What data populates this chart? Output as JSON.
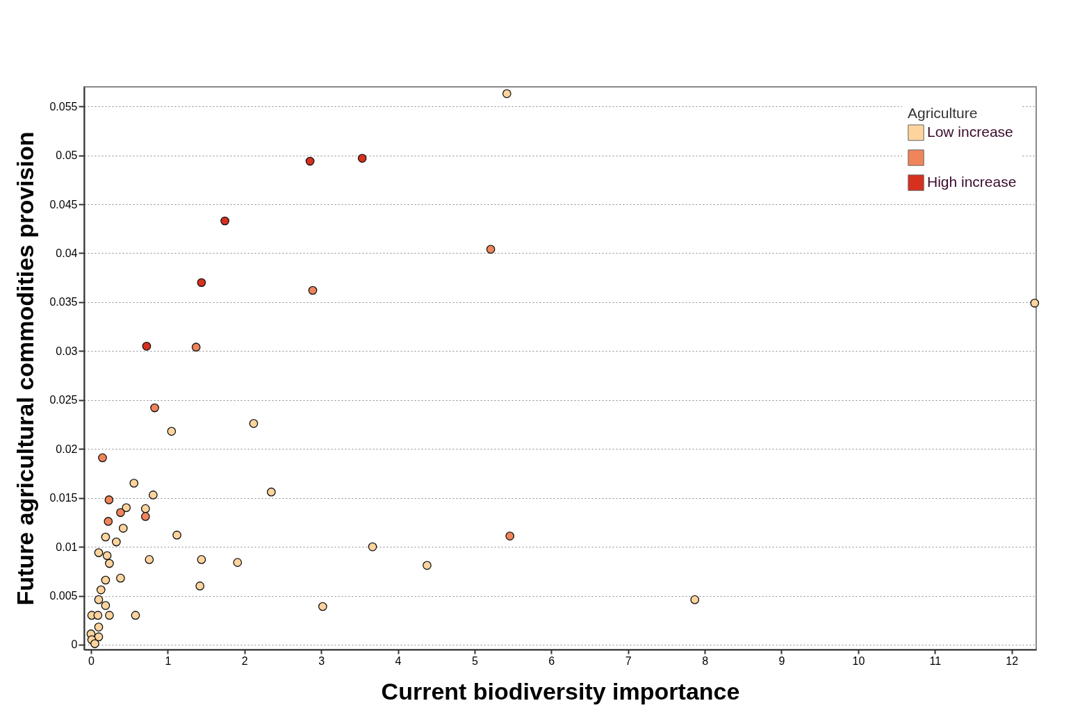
{
  "chart_data": {
    "type": "scatter",
    "xlabel": "Current biodiversity importance",
    "ylabel": "Future agricultural commodities provision",
    "legend_title": "Agriculture",
    "legend": "top right",
    "grid": "y",
    "marker": "circle",
    "xlim": [
      -0.09,
      12.32
    ],
    "ylim": [
      -0.0005,
      0.057
    ],
    "xticks": [
      0,
      1,
      2,
      3,
      4,
      5,
      6,
      7,
      8,
      9,
      10,
      11,
      12
    ],
    "yticks": [
      0,
      0.005,
      0.01,
      0.015,
      0.02,
      0.025,
      0.03,
      0.035,
      0.04,
      0.045,
      0.05,
      0.055
    ],
    "series": [
      {
        "name": "Low increase",
        "color": "#fdd49e",
        "x": [
          5.42,
          12.3,
          1.05,
          2.12,
          2.35,
          0.56,
          0.81,
          1.12,
          3.67,
          4.38,
          1.91,
          1.44,
          0.76,
          1.42,
          3.02,
          7.87,
          0.58,
          0.46,
          0.71,
          0.42,
          0.19,
          0.33,
          0.1,
          0.21,
          0.24,
          0.19,
          0.385,
          0.13,
          0.1,
          0.19,
          0.01,
          0.09,
          0.24,
          0.1,
          0.0,
          0.1,
          0.01,
          0.05
        ],
        "values": [
          0.0563,
          0.0349,
          0.0218,
          0.0226,
          0.0156,
          0.0165,
          0.0153,
          0.0112,
          0.01,
          0.0081,
          0.0084,
          0.0087,
          0.0087,
          0.006,
          0.0039,
          0.0046,
          0.003,
          0.014,
          0.0139,
          0.0119,
          0.011,
          0.0105,
          0.0094,
          0.0091,
          0.0083,
          0.0066,
          0.0068,
          0.0056,
          0.0046,
          0.004,
          0.003,
          0.003,
          0.003,
          0.0018,
          0.0011,
          0.0008,
          0.0005,
          0.0001
        ]
      },
      {
        "color": "#f0845a",
        "x": [
          5.21,
          2.89,
          1.37,
          0.83,
          0.15,
          5.46,
          0.235,
          0.225,
          0.385,
          0.71
        ],
        "values": [
          0.0404,
          0.0362,
          0.0304,
          0.0242,
          0.0191,
          0.0111,
          0.0148,
          0.0126,
          0.0135,
          0.0131
        ]
      },
      {
        "name": "High increase",
        "color": "#d7301f",
        "x": [
          2.855,
          3.535,
          1.745,
          1.44,
          0.725
        ],
        "values": [
          0.0494,
          0.0497,
          0.0433,
          0.037,
          0.0305
        ]
      }
    ]
  }
}
